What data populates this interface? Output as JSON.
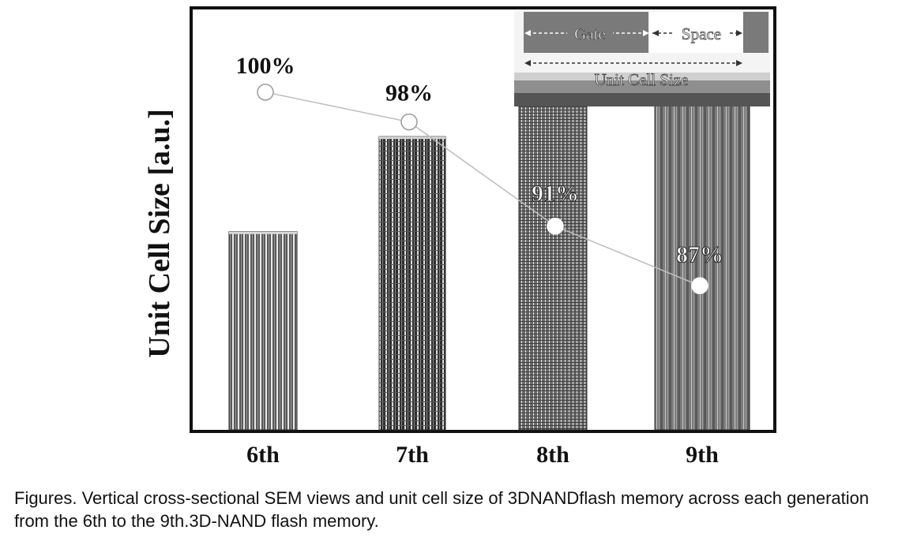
{
  "chart_data": {
    "type": "bar",
    "ylabel": "Unit Cell Size [a.u.]",
    "categories": [
      "6th",
      "7th",
      "8th",
      "9th"
    ],
    "bar_heights": [
      100,
      148,
      177,
      202
    ],
    "bar_height_units": "relative",
    "ylim": [
      0,
      205
    ],
    "series": [
      {
        "values": [
          100,
          98,
          91,
          87
        ],
        "labels": [
          "100%",
          "98%",
          "91%",
          "87%"
        ]
      }
    ],
    "grid": false,
    "legend": "none",
    "inset": {
      "gate_label": "Gate",
      "space_label": "Space",
      "unit_cell_label": "Unit Cell Size"
    }
  },
  "caption": "Figures. Vertical cross-sectional SEM views and unit cell size of 3DNANDflash memory across each generation from the 6th to the 9th.3D-NAND flash memory.",
  "colors": {
    "frame": "#111111",
    "line": "#bdbdbd",
    "marker_fill": "#ffffff"
  }
}
